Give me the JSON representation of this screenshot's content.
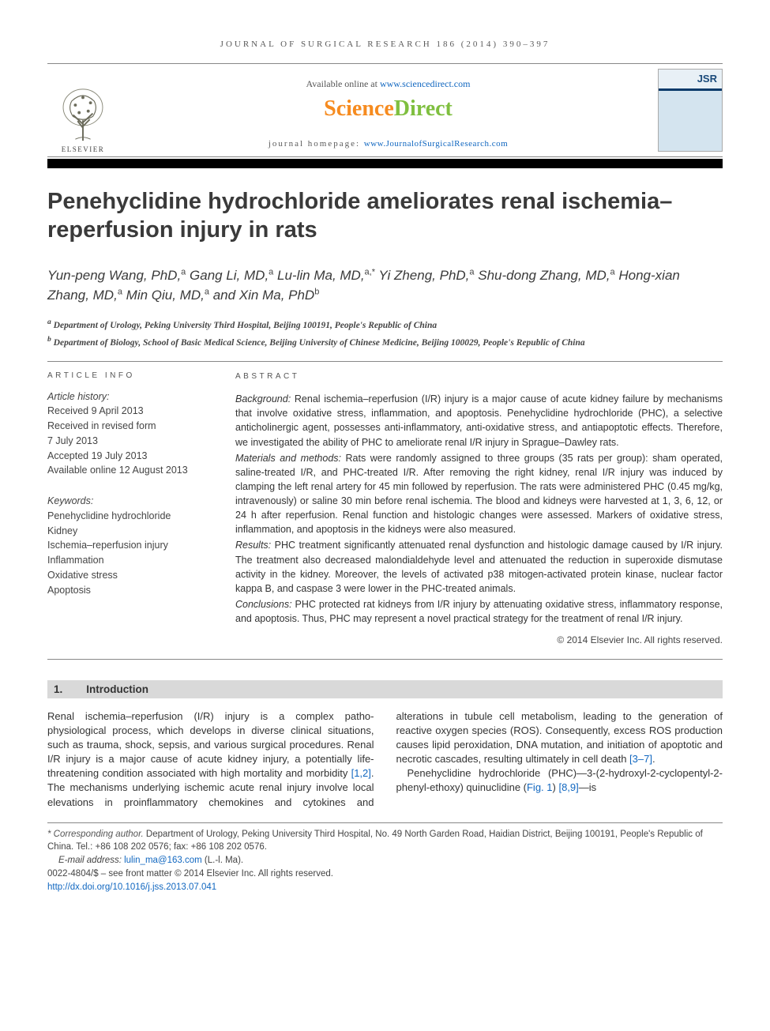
{
  "running_head": "JOURNAL OF SURGICAL RESEARCH 186 (2014) 390–397",
  "header": {
    "available_prefix": "Available online at ",
    "available_link": "www.sciencedirect.com",
    "sd_science": "Science",
    "sd_direct": "Direct",
    "homepage_prefix": "journal homepage: ",
    "homepage_link": "www.JournalofSurgicalResearch.com",
    "elsevier_label": "ELSEVIER",
    "cover_acronym": "JSR"
  },
  "title": "Penehyclidine hydrochloride ameliorates renal ischemia–reperfusion injury in rats",
  "authors_html": "Yun-peng Wang, PhD,<sup>a</sup> Gang Li, MD,<sup>a</sup> Lu-lin Ma, MD,<sup>a,*</sup> Yi Zheng, PhD,<sup>a</sup> Shu-dong Zhang, MD,<sup>a</sup> Hong-xian Zhang, MD,<sup>a</sup> Min Qiu, MD,<sup>a</sup> and Xin Ma, PhD<sup>b</sup>",
  "affiliations": [
    {
      "sup": "a",
      "text": "Department of Urology, Peking University Third Hospital, Beijing 100191, People's Republic of China"
    },
    {
      "sup": "b",
      "text": "Department of Biology, School of Basic Medical Science, Beijing University of Chinese Medicine, Beijing 100029, People's Republic of China"
    }
  ],
  "info_heading": "ARTICLE INFO",
  "abstract_heading": "ABSTRACT",
  "article_history": {
    "label": "Article history:",
    "lines": [
      "Received 9 April 2013",
      "Received in revised form",
      "7 July 2013",
      "Accepted 19 July 2013",
      "Available online 12 August 2013"
    ]
  },
  "keywords": {
    "label": "Keywords:",
    "items": [
      "Penehyclidine hydrochloride",
      "Kidney",
      "Ischemia–reperfusion injury",
      "Inflammation",
      "Oxidative stress",
      "Apoptosis"
    ]
  },
  "abstract": {
    "background_label": "Background:",
    "background": " Renal ischemia–reperfusion (I/R) injury is a major cause of acute kidney failure by mechanisms that involve oxidative stress, inflammation, and apoptosis. Penehyclidine hydrochloride (PHC), a selective anticholinergic agent, possesses anti-inflammatory, anti-oxidative stress, and antiapoptotic effects. Therefore, we investigated the ability of PHC to ameliorate renal I/R injury in Sprague–Dawley rats.",
    "methods_label": "Materials and methods:",
    "methods": " Rats were randomly assigned to three groups (35 rats per group): sham operated, saline-treated I/R, and PHC-treated I/R. After removing the right kidney, renal I/R injury was induced by clamping the left renal artery for 45 min followed by reperfusion. The rats were administered PHC (0.45 mg/kg, intravenously) or saline 30 min before renal ischemia. The blood and kidneys were harvested at 1, 3, 6, 12, or 24 h after reperfusion. Renal function and histologic changes were assessed. Markers of oxidative stress, inflammation, and apoptosis in the kidneys were also measured.",
    "results_label": "Results:",
    "results": " PHC treatment significantly attenuated renal dysfunction and histologic damage caused by I/R injury. The treatment also decreased malondialdehyde level and attenuated the reduction in superoxide dismutase activity in the kidney. Moreover, the levels of activated p38 mitogen-activated protein kinase, nuclear factor kappa B, and caspase 3 were lower in the PHC-treated animals.",
    "conclusions_label": "Conclusions:",
    "conclusions": " PHC protected rat kidneys from I/R injury by attenuating oxidative stress, inflammatory response, and apoptosis. Thus, PHC may represent a novel practical strategy for the treatment of renal I/R injury."
  },
  "copyright": "© 2014 Elsevier Inc. All rights reserved.",
  "section1": {
    "num": "1.",
    "title": "Introduction"
  },
  "intro_p1_a": "Renal ischemia–reperfusion (I/R) injury is a complex patho-physiological process, which develops in diverse clinical situations, such as trauma, shock, sepsis, and various surgical procedures. Renal I/R injury is a major cause of acute kidney injury, a potentially life-threatening condition associated with high mortality and morbidity ",
  "intro_ref1": "[1,2]",
  "intro_p1_b": ". The mechanisms underlying",
  "intro_p2_a": "ischemic acute renal injury involve local elevations in proin­flammatory chemokines and cytokines and alterations in tubule cell metabolism, leading to the generation of reactive oxygen species (ROS). Consequently, excess ROS production causes lipid peroxidation, DNA mutation, and initiation of apoptotic and necrotic cascades, resulting ultimately in cell death ",
  "intro_ref2": "[3–7]",
  "intro_p2_b": ".",
  "intro_p3_a": "Penehyclidine hydrochloride (PHC)—3-(2-hydroxyl-2-cyclopentyl-2-phenyl-ethoxy) quinuclidine (",
  "intro_fig": "Fig. 1",
  "intro_p3_b": ") ",
  "intro_ref3": "[8,9]",
  "intro_p3_c": "—is",
  "footnotes": {
    "corr_label": "* Corresponding author.",
    "corr_text": " Department of Urology, Peking University Third Hospital, No. 49 North Garden Road, Haidian District, Beijing 100191, People's Republic of China. Tel.: +86 108 202 0576; fax: +86 108 202 0576.",
    "email_label": "E-mail address: ",
    "email": "lulin_ma@163.com",
    "email_suffix": " (L.-l. Ma).",
    "issn_line": "0022-4804/$ – see front matter © 2014 Elsevier Inc. All rights reserved.",
    "doi": "http://dx.doi.org/10.1016/j.jss.2013.07.041"
  },
  "colors": {
    "link": "#1167c0",
    "sd_orange": "#f68b1f",
    "sd_green": "#7fbf3f",
    "section_bg": "#d9d9d9",
    "text": "#333333",
    "rule": "#888888"
  }
}
